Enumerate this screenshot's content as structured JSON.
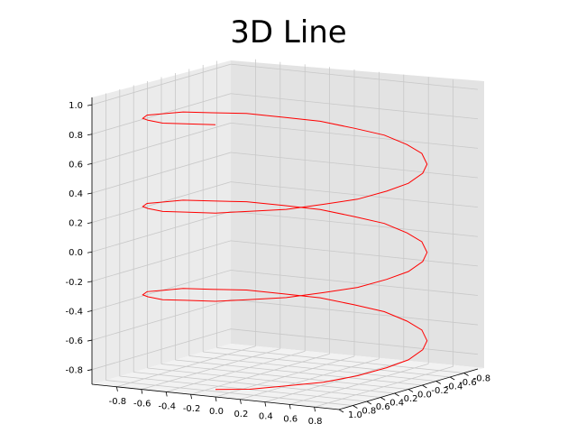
{
  "chart_data": {
    "type": "line",
    "title": "3D Line",
    "xlabel": "",
    "ylabel": "",
    "zlabel": "",
    "grid": true,
    "axes": {
      "x": {
        "ticks": [
          -0.8,
          -0.6,
          -0.4,
          -0.2,
          0.0,
          0.2,
          0.4,
          0.6,
          0.8
        ],
        "tick_labels": [
          "-0.8",
          "-0.6",
          "-0.4",
          "-0.2",
          "0.0",
          "0.2",
          "0.4",
          "0.6",
          "0.8"
        ],
        "lim": [
          -1.0,
          1.0
        ]
      },
      "y": {
        "ticks": [
          -0.8,
          -0.6,
          -0.4,
          -0.2,
          0.0,
          0.2,
          0.4,
          0.6,
          0.8,
          1.0
        ],
        "tick_labels": [
          "-0.8",
          "-0.6",
          "-0.4",
          "-0.2",
          "0.0",
          "0.2",
          "0.4",
          "0.6",
          "0.8",
          "1.0"
        ],
        "lim": [
          -1.0,
          1.0
        ]
      },
      "z": {
        "ticks": [
          -0.8,
          -0.6,
          -0.4,
          -0.2,
          0.0,
          0.2,
          0.4,
          0.6,
          0.8,
          1.0
        ],
        "tick_labels": [
          "-0.8",
          "-0.6",
          "-0.4",
          "-0.2",
          "0.0",
          "0.2",
          "0.4",
          "0.6",
          "0.8",
          "1.0"
        ],
        "lim": [
          -0.9,
          1.05
        ]
      }
    },
    "series": [
      {
        "color": "#ff0000",
        "x": [
          0.0,
          0.26,
          0.5,
          0.71,
          0.87,
          0.97,
          1.0,
          0.97,
          0.87,
          0.71,
          0.5,
          0.26,
          0.0,
          -0.26,
          -0.5,
          -0.71,
          -0.87,
          -0.97,
          -1.0,
          -0.97,
          -0.87,
          -0.71,
          -0.5,
          -0.26,
          0.0,
          0.26,
          0.5,
          0.71,
          0.87,
          0.97,
          1.0,
          0.97,
          0.87,
          0.71,
          0.5,
          0.26,
          0.0,
          -0.26,
          -0.5,
          -0.71,
          -0.87,
          -0.97,
          -1.0,
          -0.97,
          -0.87,
          -0.71,
          -0.5,
          -0.26,
          0.0,
          0.26,
          0.5,
          0.71,
          0.87,
          0.97,
          1.0,
          0.97,
          0.87,
          0.71,
          0.5,
          0.26,
          0.0,
          -0.26,
          -0.5,
          -0.71,
          -0.87,
          -0.97,
          -1.0,
          -0.97,
          -0.87,
          -0.71,
          -0.5,
          -0.26,
          0.0
        ],
        "y": [
          1.0,
          0.97,
          0.87,
          0.71,
          0.5,
          0.26,
          0.0,
          -0.26,
          -0.5,
          -0.71,
          -0.87,
          -0.97,
          -1.0,
          -0.97,
          -0.87,
          -0.71,
          -0.5,
          -0.26,
          0.0,
          0.26,
          0.5,
          0.71,
          0.87,
          0.97,
          1.0,
          0.97,
          0.87,
          0.71,
          0.5,
          0.26,
          0.0,
          -0.26,
          -0.5,
          -0.71,
          -0.87,
          -0.97,
          -1.0,
          -0.97,
          -0.87,
          -0.71,
          -0.5,
          -0.26,
          0.0,
          0.26,
          0.5,
          0.71,
          0.87,
          0.97,
          1.0,
          0.97,
          0.87,
          0.71,
          0.5,
          0.26,
          0.0,
          -0.26,
          -0.5,
          -0.71,
          -0.87,
          -0.97,
          -1.0,
          -0.97,
          -0.87,
          -0.71,
          -0.5,
          -0.26,
          0.0,
          0.26,
          0.5,
          0.71,
          0.87,
          0.97,
          1.0
        ],
        "z": [
          -0.85,
          -0.83,
          -0.8,
          -0.78,
          -0.75,
          -0.72,
          -0.7,
          -0.67,
          -0.65,
          -0.62,
          -0.6,
          -0.57,
          -0.55,
          -0.52,
          -0.5,
          -0.47,
          -0.45,
          -0.42,
          -0.4,
          -0.37,
          -0.35,
          -0.32,
          -0.3,
          -0.27,
          -0.25,
          -0.22,
          -0.2,
          -0.17,
          -0.15,
          -0.12,
          -0.1,
          -0.07,
          -0.05,
          -0.02,
          0.0,
          0.03,
          0.05,
          0.08,
          0.1,
          0.13,
          0.15,
          0.18,
          0.2,
          0.23,
          0.25,
          0.28,
          0.3,
          0.33,
          0.35,
          0.38,
          0.4,
          0.43,
          0.45,
          0.48,
          0.5,
          0.53,
          0.55,
          0.58,
          0.6,
          0.63,
          0.65,
          0.68,
          0.7,
          0.73,
          0.75,
          0.78,
          0.8,
          0.83,
          0.85,
          0.88,
          0.9,
          0.93,
          0.95
        ]
      }
    ]
  }
}
